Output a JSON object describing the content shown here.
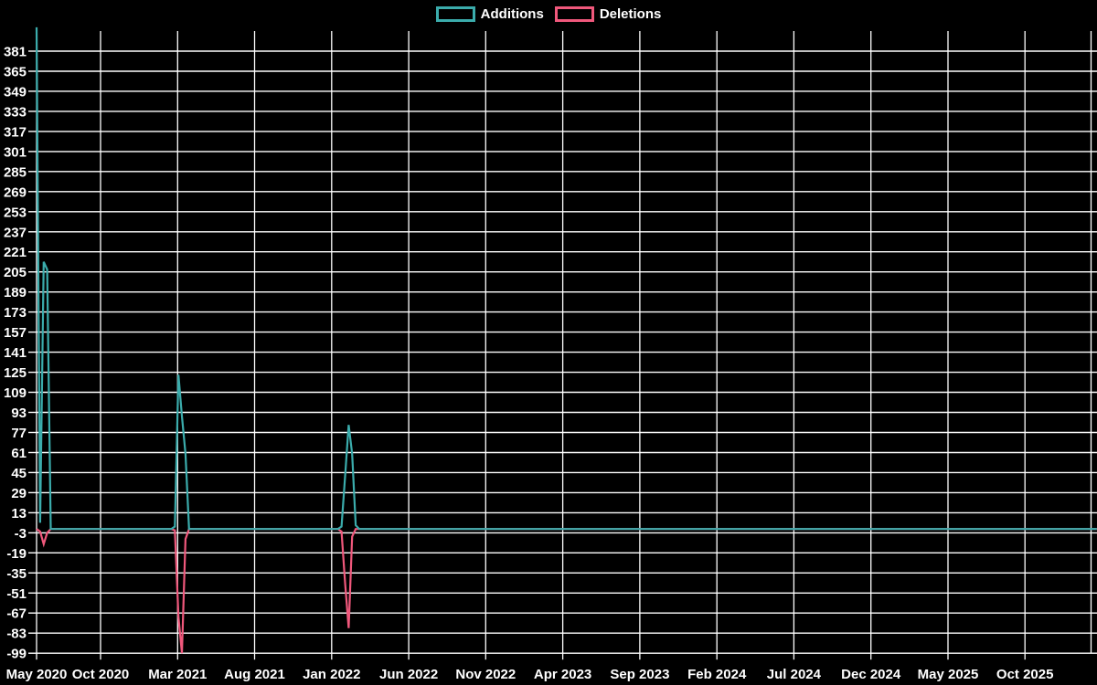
{
  "legend": {
    "items": [
      {
        "label": "Additions",
        "color": "#3BACAC"
      },
      {
        "label": "Deletions",
        "color": "#F0587C"
      }
    ]
  },
  "chart_data": {
    "type": "line",
    "title": "",
    "xlabel": "",
    "ylabel": "",
    "background": "#000000",
    "grid": true,
    "grid_color": "#FFFFFF",
    "text_color": "#FFFFFF",
    "legend_position": "top-center",
    "x_axis": {
      "unit": "week",
      "weeks_total": 300,
      "tick_labels": [
        "May 2020",
        "Oct 2020",
        "Mar 2021",
        "Aug 2021",
        "Jan 2022",
        "Jun 2022",
        "Nov 2022",
        "Apr 2023",
        "Sep 2023",
        "Feb 2024",
        "Jul 2024",
        "Dec 2024",
        "May 2025",
        "Oct 2025"
      ]
    },
    "y_axis": {
      "min": -99,
      "max": 397,
      "tick_step": 16,
      "tick_labels": [
        381,
        365,
        349,
        333,
        317,
        301,
        285,
        269,
        253,
        237,
        221,
        205,
        189,
        173,
        157,
        141,
        125,
        109,
        93,
        77,
        61,
        45,
        29,
        13,
        -3,
        -19,
        -35,
        -51,
        -67,
        -83,
        -99
      ]
    },
    "series": [
      {
        "name": "Additions",
        "color": "#3BACAC",
        "default": 0,
        "points": [
          [
            0,
            400
          ],
          [
            1,
            5
          ],
          [
            2,
            213
          ],
          [
            3,
            207
          ],
          [
            4,
            0
          ],
          [
            39,
            2
          ],
          [
            40,
            123
          ],
          [
            41,
            90
          ],
          [
            42,
            60
          ],
          [
            43,
            0
          ],
          [
            86,
            2
          ],
          [
            87,
            42
          ],
          [
            88,
            83
          ],
          [
            89,
            60
          ],
          [
            90,
            3
          ],
          [
            91,
            0
          ]
        ]
      },
      {
        "name": "Deletions",
        "color": "#F0587C",
        "default": 0,
        "points": [
          [
            1,
            -2
          ],
          [
            2,
            -12
          ],
          [
            3,
            -3
          ],
          [
            4,
            0
          ],
          [
            39,
            -1
          ],
          [
            40,
            -70
          ],
          [
            41,
            -99
          ],
          [
            42,
            -8
          ],
          [
            43,
            0
          ],
          [
            86,
            -2
          ],
          [
            87,
            -43
          ],
          [
            88,
            -79
          ],
          [
            89,
            -6
          ],
          [
            90,
            0
          ]
        ]
      }
    ]
  }
}
